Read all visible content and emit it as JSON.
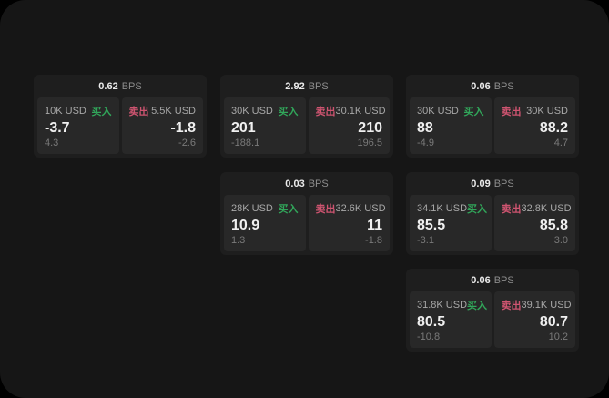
{
  "labels": {
    "bps_unit": "BPS",
    "buy": "买入",
    "sell": "卖出"
  },
  "colors": {
    "buy": "#31a65a",
    "sell": "#ce5470",
    "background": "#161616",
    "card": "#1e1e1e",
    "panel": "#282828"
  },
  "cards": [
    {
      "bps": "0.62",
      "buy": {
        "amount": "10K USD",
        "value": "-3.7",
        "delta": "4.3"
      },
      "sell": {
        "amount": "5.5K USD",
        "value": "-1.8",
        "delta": "-2.6"
      }
    },
    {
      "bps": "2.92",
      "buy": {
        "amount": "30K USD",
        "value": "201",
        "delta": "-188.1"
      },
      "sell": {
        "amount": "30.1K USD",
        "value": "210",
        "delta": "196.5"
      }
    },
    {
      "bps": "0.06",
      "buy": {
        "amount": "30K USD",
        "value": "88",
        "delta": "-4.9"
      },
      "sell": {
        "amount": "30K USD",
        "value": "88.2",
        "delta": "4.7"
      }
    },
    {
      "bps": "0.03",
      "buy": {
        "amount": "28K USD",
        "value": "10.9",
        "delta": "1.3"
      },
      "sell": {
        "amount": "32.6K USD",
        "value": "11",
        "delta": "-1.8"
      }
    },
    {
      "bps": "0.09",
      "buy": {
        "amount": "34.1K USD",
        "value": "85.5",
        "delta": "-3.1"
      },
      "sell": {
        "amount": "32.8K USD",
        "value": "85.8",
        "delta": "3.0"
      }
    },
    {
      "bps": "0.06",
      "buy": {
        "amount": "31.8K USD",
        "value": "80.5",
        "delta": "-10.8"
      },
      "sell": {
        "amount": "39.1K USD",
        "value": "80.7",
        "delta": "10.2"
      }
    }
  ]
}
